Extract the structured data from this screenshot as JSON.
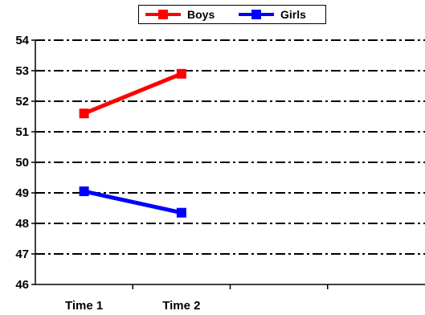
{
  "chart_data": {
    "type": "line",
    "categories": [
      "Time 1",
      "Time 2"
    ],
    "series": [
      {
        "name": "Boys",
        "values": [
          51.6,
          52.9
        ],
        "color": "#ff0000"
      },
      {
        "name": "Girls",
        "values": [
          49.05,
          48.35
        ],
        "color": "#0000ff"
      }
    ],
    "ylim": [
      46,
      54
    ],
    "yticks": [
      "46",
      "47",
      "48",
      "49",
      "50",
      "51",
      "52",
      "53",
      "54"
    ],
    "x_slots": 4,
    "grid": true,
    "grid_style": "dash-dot",
    "legend": "top-center",
    "title": "",
    "xlabel": "",
    "ylabel": ""
  }
}
